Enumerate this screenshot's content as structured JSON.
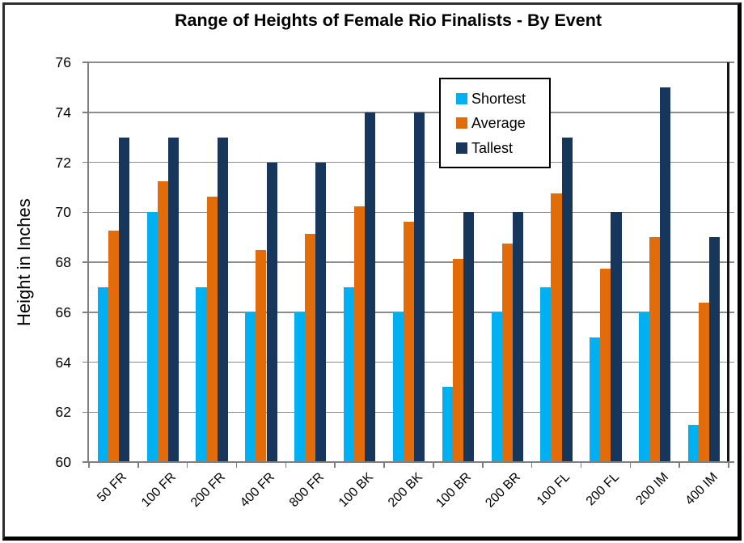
{
  "window": {
    "background": "#ffffff",
    "frame_border_color": "#000000"
  },
  "chart_data": {
    "type": "bar",
    "title": "Range of Heights of Female Rio Finalists - By Event",
    "xlabel": "",
    "ylabel": "Height in Inches",
    "ylim": [
      60,
      76
    ],
    "y_ticks": [
      76,
      74,
      72,
      70,
      68,
      66,
      64,
      62,
      60
    ],
    "grid": true,
    "gridline_color": "#8c8c8c",
    "axis_color": "#7f7f7f",
    "legend_position": "inside-top-center",
    "categories": [
      "50 FR",
      "100 FR",
      "200 FR",
      "400 FR",
      "800 FR",
      "100 BK",
      "200 BK",
      "100 BR",
      "200 BR",
      "100 FL",
      "200 FL",
      "200 IM",
      "400 IM"
    ],
    "series": [
      {
        "name": "Shortest",
        "color": "#00B0F0",
        "values": [
          67,
          70,
          67,
          66,
          66,
          67,
          66,
          63,
          66,
          67,
          65,
          66,
          61.5
        ]
      },
      {
        "name": "Average",
        "color": "#E36C0A",
        "values": [
          69.25,
          71.25,
          70.625,
          68.5,
          69.125,
          70.25,
          69.625,
          68.125,
          68.75,
          70.75,
          67.75,
          69,
          66.375
        ]
      },
      {
        "name": "Tallest",
        "color": "#16365C",
        "values": [
          73,
          73,
          73,
          72,
          72,
          74,
          74,
          70,
          70,
          73,
          70,
          75,
          69
        ]
      }
    ]
  }
}
